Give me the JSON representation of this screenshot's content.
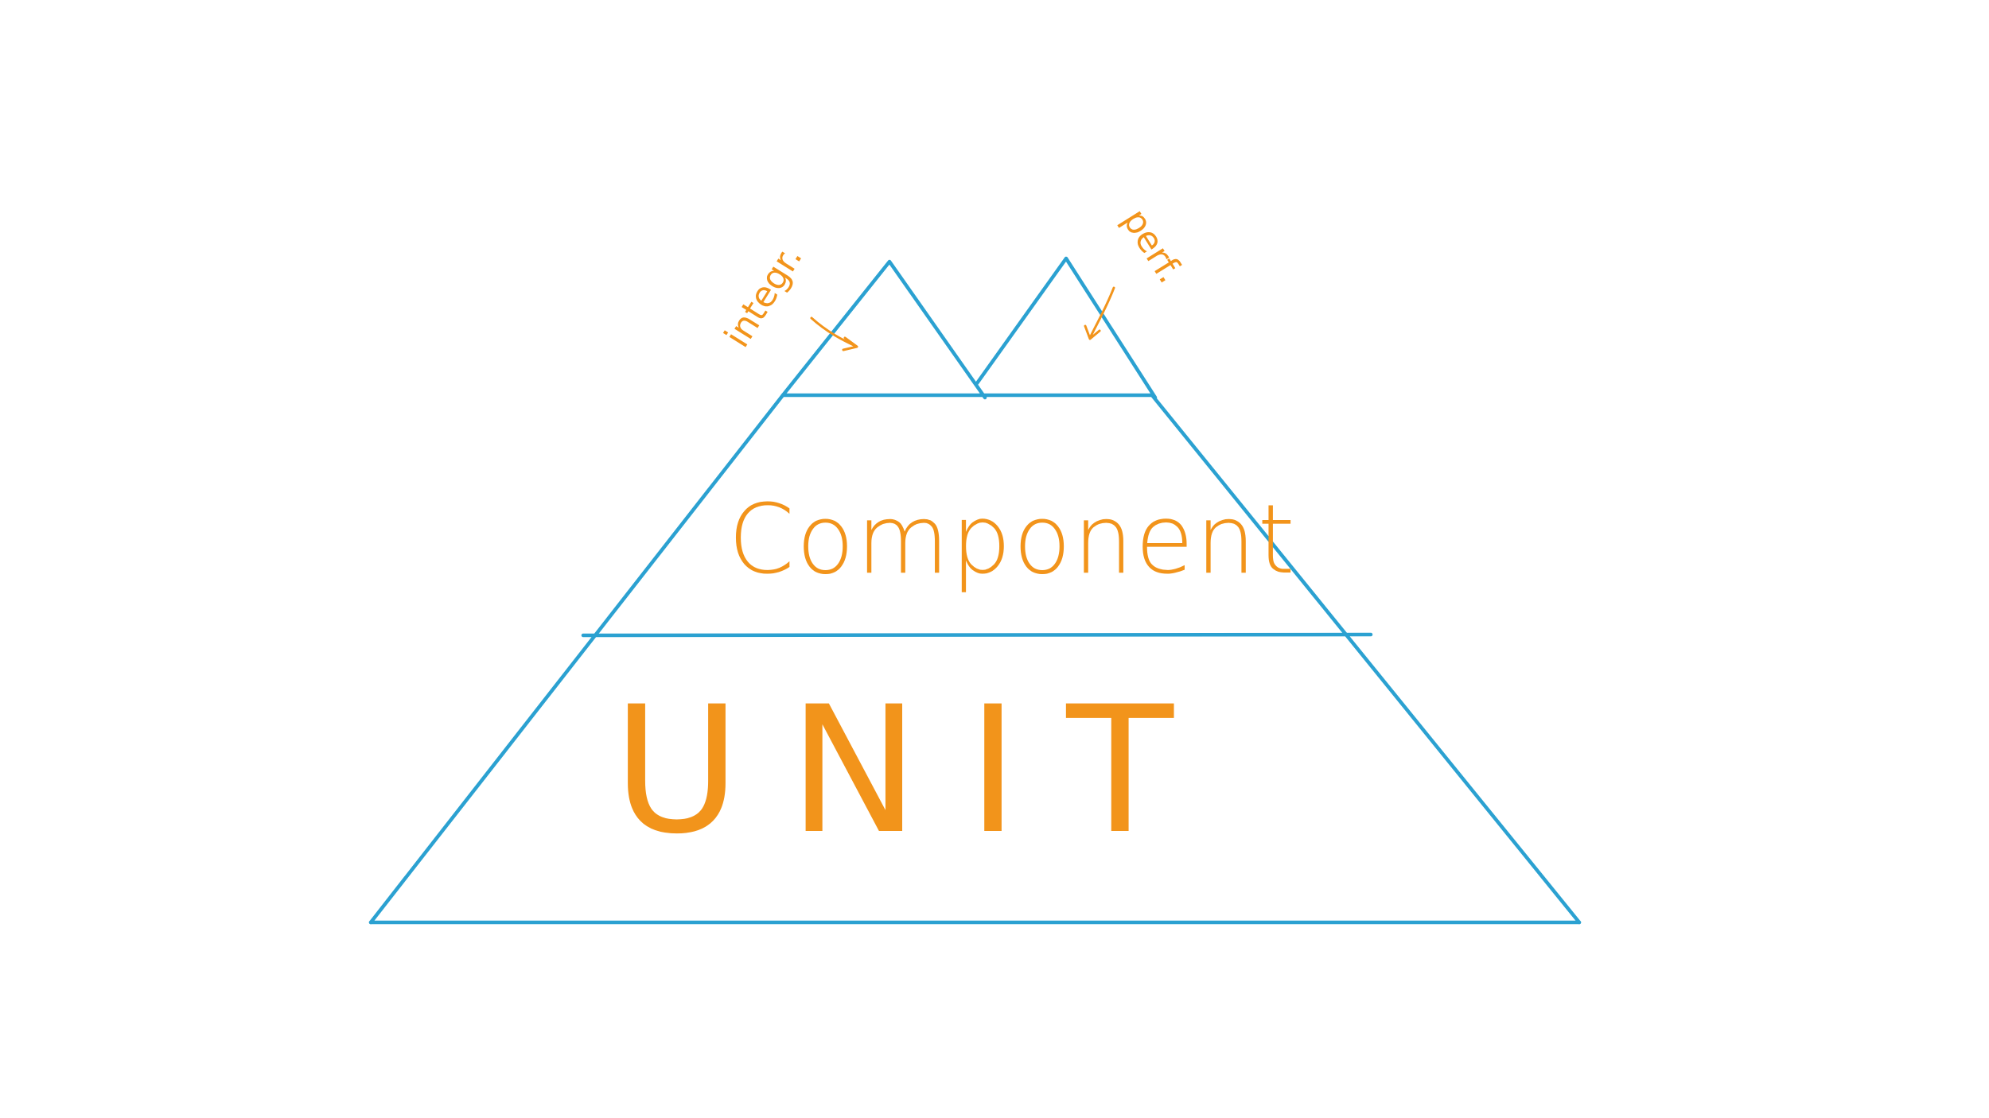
{
  "diagram": {
    "type": "test-pyramid",
    "colors": {
      "outline": "#2BA1D1",
      "text": "#F2941B",
      "background": "#FFFFFF"
    },
    "layers": {
      "unit": {
        "label": "UNIT"
      },
      "component": {
        "label": "Component"
      },
      "integration": {
        "label": "integr."
      },
      "performance": {
        "label": "perf."
      }
    }
  }
}
